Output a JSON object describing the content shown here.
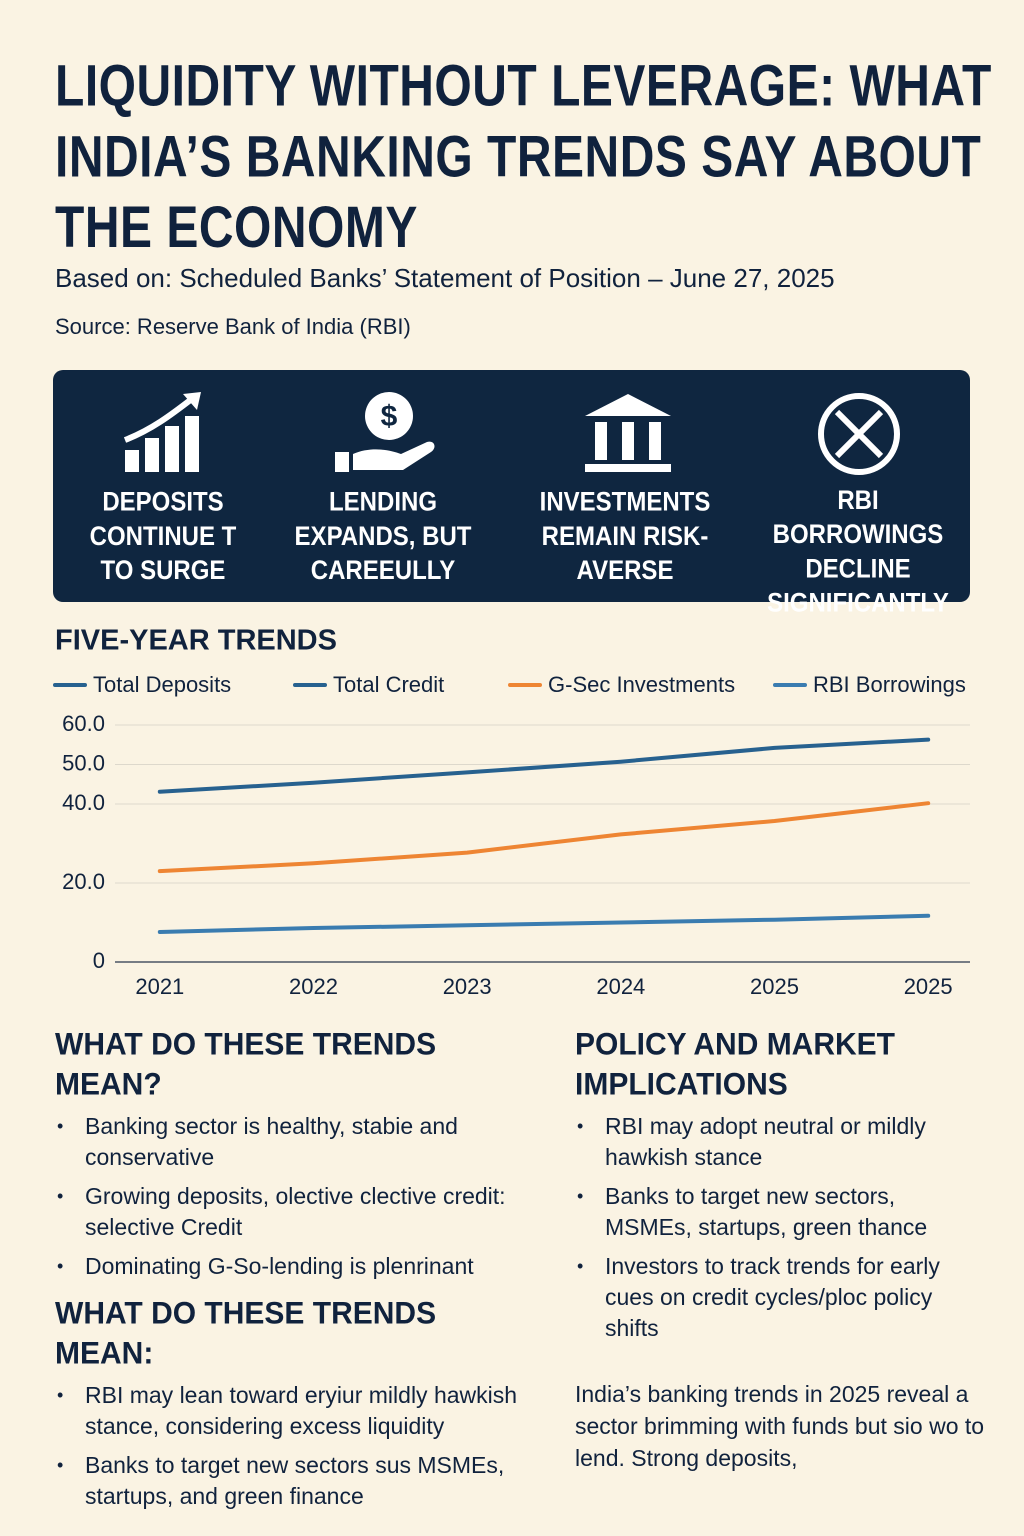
{
  "header": {
    "title": "LIQUIDITY WITHOUT LEVERAGE: WHAT INDIA’S BANKING TRENDS SAY ABOUT THE ECONOMY",
    "subtitle": "Based on: Scheduled Banks’ Statement of Position – June 27, 2025",
    "source": "Source: Reserve Bank of India (RBI)"
  },
  "highlights": [
    "DEPOSITS CONTINUE T TO SURGE",
    "LENDING EXPANDS, BUT CAREEULLY",
    "INVESTMENTS REMAIN RISK-AVERSE",
    "RBI BORROWINGS DECLINE SIGNIFICANTLY"
  ],
  "chart_data": {
    "type": "line",
    "title": "FIVE-YEAR TRENDS",
    "categories": [
      "2021",
      "2022",
      "2023",
      "2024",
      "2025",
      "2025"
    ],
    "series": [
      {
        "name": "Total Deposits",
        "color": "#27618f",
        "values": [
          43.1,
          45.4,
          48.0,
          50.7,
          54.2,
          56.3
        ]
      },
      {
        "name": "Total Credit",
        "color": "#27618f",
        "values": [
          null,
          null,
          null,
          null,
          null,
          null
        ]
      },
      {
        "name": "G-Sec Investments",
        "color": "#ee8533",
        "values": [
          23.0,
          25.0,
          27.7,
          32.3,
          35.7,
          40.2
        ]
      },
      {
        "name": "RBI Borrowings",
        "color": "#3a7cb0",
        "values": [
          7.6,
          8.6,
          9.3,
          10.0,
          10.7,
          11.7
        ]
      }
    ],
    "ylim": [
      0,
      60
    ],
    "yticks": [
      {
        "value": 60,
        "label": "60.0"
      },
      {
        "value": 50,
        "label": "50.0"
      },
      {
        "value": 40,
        "label": "40.0"
      },
      {
        "value": 20,
        "label": "20.0"
      },
      0
    ],
    "grid": true
  },
  "sections": [
    {
      "heading": "WHAT DO THESE TRENDS MEAN?",
      "bullets": [
        "Banking sector is healthy, stabie and conservative",
        "Growing deposits, olective clective credit: selective Credit",
        "Dominating G-So-lending is plenrinant"
      ]
    },
    {
      "heading": "WHAT DO THESE TRENDS MEAN:",
      "bullets": [
        "RBI may lean toward eryiur mildly hawkish stance, considering excess liquidity",
        "Banks to target new sectors sus MSMEs, startups, and green finance"
      ]
    },
    {
      "heading": "POLICY AND MARKET IMPLICATIONS",
      "bullets": [
        "RBI may adopt neutral or mildly hawkish stance",
        "Banks to target new sectors, MSMEs, startups, green thance",
        "Investors to track trends for early cues on credit cycles/ploc policy shifts"
      ]
    }
  ],
  "conclusion": "India’s banking trends in 2025 reveal a sector brimming with funds but sio wo to lend. Strong deposits,"
}
